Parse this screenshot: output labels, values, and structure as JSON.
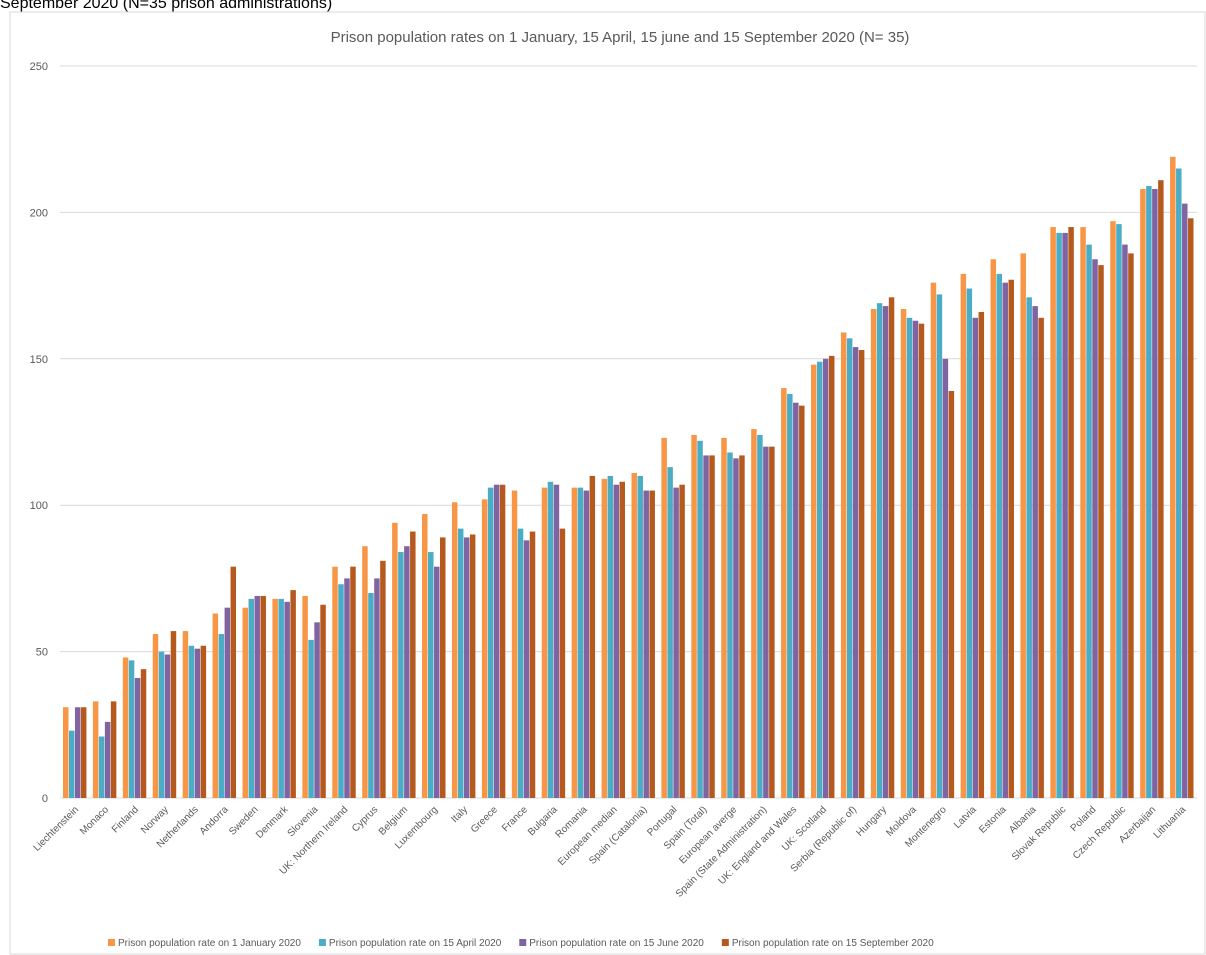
{
  "chart_data": {
    "type": "bar",
    "subtitle": "September 2020 (N=35 prison administrations)",
    "title": "Prison population rates on 1 January, 15 April, 15 june and 15 September 2020 (N= 35)",
    "categories": [
      "Liechtenstein",
      "Monaco",
      "Finland",
      "Norway",
      "Netherlands",
      "Andorra",
      "Sweden",
      "Denmark",
      "Slovenia",
      "UK: Northern Ireland",
      "Cyprus",
      "Belgium",
      "Luxembourg",
      "Italy",
      "Greece",
      "France",
      "Bulgaria",
      "Romania",
      "European median",
      "Spain (Catalonia)",
      "Portugal",
      "Spain (Total)",
      "European averge",
      "Spain (State Administration)",
      "UK: England and Wales",
      "UK: Scotland",
      "Serbia (Republic of)",
      "Hungary",
      "Moldova",
      "Montenegro",
      "Latvia",
      "Estonia",
      "Albania",
      "Slovak Republic",
      "Poland",
      "Czech Republic",
      "Azerbaijan",
      "Lithuania"
    ],
    "series": [
      {
        "name": "Prison population rate on 1 January 2020",
        "color": "#f79646",
        "values": [
          31,
          33,
          48,
          56,
          57,
          63,
          65,
          68,
          69,
          79,
          86,
          94,
          97,
          101,
          102,
          105,
          106,
          106,
          109,
          111,
          123,
          124,
          123,
          126,
          140,
          148,
          159,
          167,
          167,
          176,
          179,
          184,
          186,
          195,
          195,
          197,
          208,
          219
        ]
      },
      {
        "name": "Prison population rate on 15 April 2020",
        "color": "#4bacc6",
        "values": [
          23,
          21,
          47,
          50,
          52,
          56,
          68,
          68,
          54,
          73,
          70,
          84,
          84,
          92,
          106,
          92,
          108,
          106,
          110,
          110,
          113,
          122,
          118,
          124,
          138,
          149,
          157,
          169,
          164,
          172,
          174,
          179,
          171,
          193,
          189,
          196,
          209,
          215
        ]
      },
      {
        "name": "Prison population rate on 15 June 2020",
        "color": "#8064a2",
        "values": [
          31,
          26,
          41,
          49,
          51,
          65,
          69,
          67,
          60,
          75,
          75,
          86,
          79,
          89,
          107,
          88,
          107,
          105,
          107,
          105,
          106,
          117,
          116,
          120,
          135,
          150,
          154,
          168,
          163,
          150,
          164,
          176,
          168,
          193,
          184,
          189,
          208,
          203
        ]
      },
      {
        "name": "Prison population rate on 15 September 2020",
        "color": "#b5591f",
        "values": [
          31,
          33,
          44,
          57,
          52,
          79,
          69,
          71,
          66,
          79,
          81,
          91,
          89,
          90,
          107,
          91,
          92,
          110,
          108,
          105,
          107,
          117,
          117,
          120,
          134,
          151,
          153,
          171,
          162,
          139,
          166,
          177,
          164,
          195,
          182,
          186,
          211,
          198
        ]
      }
    ],
    "ylim": [
      0,
      250
    ],
    "yticks": [
      0,
      50,
      100,
      150,
      200,
      250
    ],
    "grid": true
  }
}
